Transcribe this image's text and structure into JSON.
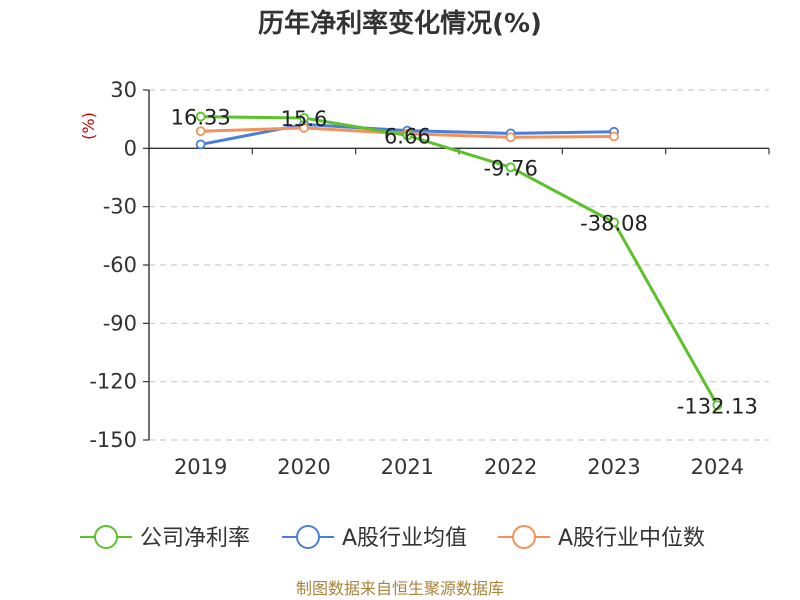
{
  "chart_data": {
    "type": "line",
    "title": "历年净利率变化情况(%)",
    "unit_label": "(%)",
    "categories": [
      "2019",
      "2020",
      "2021",
      "2022",
      "2023",
      "2024"
    ],
    "ylim": [
      -150,
      30
    ],
    "yticks": [
      30,
      0,
      -30,
      -60,
      -90,
      -120,
      -150
    ],
    "grid": true,
    "legend_position": "bottom",
    "series": [
      {
        "name": "公司净利率",
        "color": "#5cc12a",
        "values": [
          16.33,
          15.6,
          6.66,
          -9.76,
          -38.08,
          -132.13
        ],
        "labels": [
          "16.33",
          "15.6",
          "6.66",
          "-9.76",
          "-38.08",
          "-132.13"
        ]
      },
      {
        "name": "A股行业均值",
        "color": "#4a7fd9",
        "values": [
          2.0,
          12.3,
          9.1,
          7.7,
          8.5,
          null
        ]
      },
      {
        "name": "A股行业中位数",
        "color": "#f4915a",
        "values": [
          8.8,
          10.5,
          7.5,
          5.7,
          6.1,
          null
        ]
      }
    ],
    "source": "制图数据来自恒生聚源数据库"
  }
}
